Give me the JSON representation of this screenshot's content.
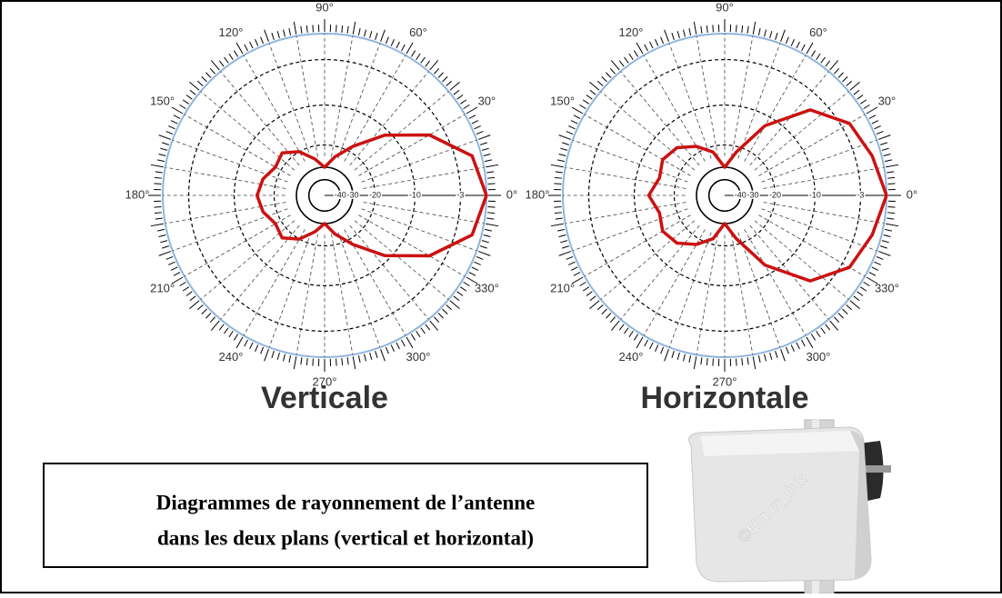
{
  "chart_data": [
    {
      "type": "polar",
      "title": "Verticale",
      "theta": [
        0,
        15,
        30,
        45,
        60,
        75,
        90,
        105,
        120,
        135,
        150,
        165,
        180,
        195,
        210,
        225,
        240,
        255,
        270,
        285,
        300,
        315,
        330,
        345
      ],
      "values": [
        0,
        -1,
        -5,
        -11,
        -18,
        -24,
        -30,
        -25,
        -20,
        -17,
        -18,
        -16,
        -15,
        -16,
        -18,
        -17,
        -20,
        -25,
        -30,
        -24,
        -18,
        -11,
        -5,
        -1
      ],
      "color": "#cc1111",
      "rlim": [
        -40,
        0
      ],
      "rticks": [
        -3,
        -10,
        -20,
        -30,
        -40
      ],
      "thetaticks": [
        {
          "value": 0,
          "label": "0°"
        },
        {
          "value": 30,
          "label": "30°"
        },
        {
          "value": 60,
          "label": "60°"
        },
        {
          "value": 90,
          "label": "90°"
        },
        {
          "value": 120,
          "label": "120°"
        },
        {
          "value": 150,
          "label": "150°"
        },
        {
          "value": 180,
          "label": "180°"
        },
        {
          "value": 210,
          "label": "210°"
        },
        {
          "value": 240,
          "label": "240°"
        },
        {
          "value": 270,
          "label": "270°"
        },
        {
          "value": 300,
          "label": "300°"
        },
        {
          "value": 330,
          "label": "330°"
        }
      ],
      "grid": true
    },
    {
      "type": "polar",
      "title": "Horizontale",
      "theta": [
        0,
        15,
        30,
        45,
        60,
        75,
        90,
        105,
        120,
        135,
        150,
        165,
        180,
        195,
        210,
        225,
        240,
        255,
        270,
        285,
        300,
        315,
        330,
        345
      ],
      "values": [
        0,
        -1,
        -2,
        -5,
        -12,
        -22,
        -30,
        -22,
        -18,
        -15,
        -14,
        -15,
        -13,
        -15,
        -14,
        -15,
        -18,
        -22,
        -30,
        -22,
        -12,
        -5,
        -2,
        -1
      ],
      "color": "#cc1111",
      "rlim": [
        -40,
        0
      ],
      "rticks": [
        -3,
        -10,
        -20,
        -30,
        -40
      ],
      "thetaticks": [
        {
          "value": 0,
          "label": "0°"
        },
        {
          "value": 30,
          "label": "30°"
        },
        {
          "value": 60,
          "label": "60°"
        },
        {
          "value": 90,
          "label": "90°"
        },
        {
          "value": 120,
          "label": "120°"
        },
        {
          "value": 150,
          "label": "150°"
        },
        {
          "value": 180,
          "label": "180°"
        },
        {
          "value": 210,
          "label": "210°"
        },
        {
          "value": 240,
          "label": "240°"
        },
        {
          "value": 270,
          "label": "270°"
        },
        {
          "value": 300,
          "label": "300°"
        },
        {
          "value": 330,
          "label": "330°"
        }
      ],
      "grid": true
    }
  ],
  "caption": [
    "Diagrammes de rayonnement de l’antenne",
    "dans les deux plans (vertical et horizontal)"
  ],
  "photo": {
    "watermark": "©Hyper_link"
  }
}
